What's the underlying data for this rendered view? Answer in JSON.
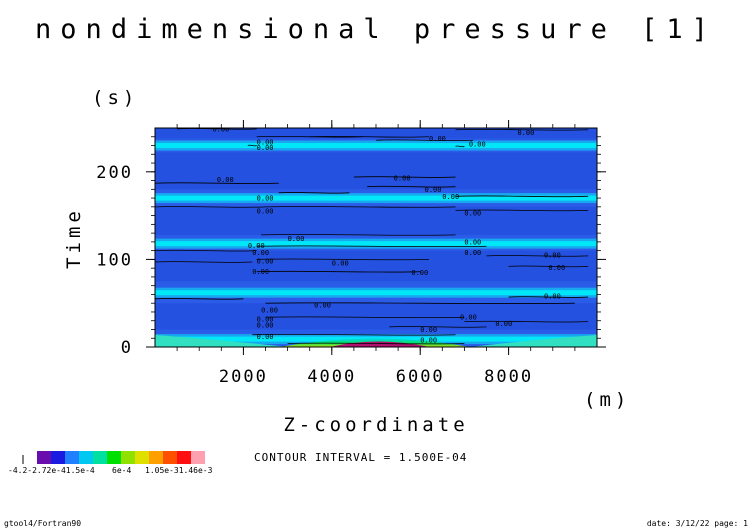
{
  "chart_data": {
    "type": "heatmap",
    "title": "nondimensional pressure [1]",
    "xlabel": "Z-coordinate",
    "ylabel": "Time",
    "x_unit": "(m)",
    "y_unit": "(s)",
    "xlim": [
      0,
      10000
    ],
    "ylim": [
      0,
      250
    ],
    "x_ticks": [
      "2000",
      "4000",
      "6000",
      "8000"
    ],
    "y_ticks": [
      "0",
      "100",
      "200"
    ],
    "x_tick_values": [
      2000,
      4000,
      6000,
      8000
    ],
    "y_tick_values": [
      0,
      100,
      200
    ],
    "contour_interval_text": "CONTOUR INTERVAL = 1.500E-04",
    "colorbar_labels": [
      "-4.2-2.72e-41.5e-4",
      "6e-4",
      "1.05e-31.46e-3"
    ],
    "colorbar_colors": [
      "#6a0dad",
      "#1a1ae0",
      "#2080ff",
      "#00c8f0",
      "#00e0a0",
      "#00e000",
      "#90e000",
      "#e0e000",
      "#ffa000",
      "#ff5000",
      "#ff1010",
      "#ffa0b0"
    ],
    "contour_label": "0.00",
    "bright_band_times": [
      9,
      62,
      118,
      170,
      230
    ],
    "bright_band_color": "#00e8f8",
    "background_color": "#2a5ce8",
    "contours": [
      {
        "z0": 500,
        "z1": 2300,
        "t": 249
      },
      {
        "z0": 2300,
        "z1": 4700,
        "t": 240
      },
      {
        "z0": 3500,
        "z1": 6200,
        "t": 240
      },
      {
        "z0": 5000,
        "z1": 7200,
        "t": 236
      },
      {
        "z0": 6800,
        "z1": 9800,
        "t": 248
      },
      {
        "z0": 2100,
        "z1": 2300,
        "t": 230
      },
      {
        "z0": 6800,
        "z1": 7000,
        "t": 229
      },
      {
        "z0": 0,
        "z1": 2800,
        "t": 187
      },
      {
        "z0": 2800,
        "z1": 4400,
        "t": 176
      },
      {
        "z0": 4500,
        "z1": 6800,
        "t": 194
      },
      {
        "z0": 4800,
        "z1": 6800,
        "t": 183
      },
      {
        "z0": 6800,
        "z1": 9800,
        "t": 172
      },
      {
        "z0": 0,
        "z1": 2500,
        "t": 160
      },
      {
        "z0": 2500,
        "z1": 6800,
        "t": 160
      },
      {
        "z0": 6800,
        "z1": 9800,
        "t": 156
      },
      {
        "z0": 2400,
        "z1": 6800,
        "t": 128
      },
      {
        "z0": 2300,
        "z1": 7500,
        "t": 115
      },
      {
        "z0": 2300,
        "z1": 6200,
        "t": 100
      },
      {
        "z0": 7500,
        "z1": 9800,
        "t": 104
      },
      {
        "z0": 0,
        "z1": 2300,
        "t": 110
      },
      {
        "z0": 2300,
        "z1": 6000,
        "t": 86
      },
      {
        "z0": 8000,
        "z1": 9800,
        "t": 92
      },
      {
        "z0": 0,
        "z1": 2200,
        "t": 97
      },
      {
        "z0": 0,
        "z1": 2000,
        "t": 55
      },
      {
        "z0": 2500,
        "z1": 9500,
        "t": 50
      },
      {
        "z0": 8000,
        "z1": 9800,
        "t": 57
      },
      {
        "z0": 2500,
        "z1": 7000,
        "t": 34
      },
      {
        "z0": 5300,
        "z1": 7500,
        "t": 23
      },
      {
        "z0": 7000,
        "z1": 9800,
        "t": 29
      },
      {
        "z0": 2200,
        "z1": 6800,
        "t": 14
      },
      {
        "z0": 3000,
        "z1": 7000,
        "t": 4
      }
    ],
    "contour_label_positions": [
      {
        "z": 1300,
        "t": 249
      },
      {
        "z": 2300,
        "t": 234
      },
      {
        "z": 2300,
        "t": 228
      },
      {
        "z": 6200,
        "t": 238
      },
      {
        "z": 7100,
        "t": 232
      },
      {
        "z": 8200,
        "t": 245
      },
      {
        "z": 1400,
        "t": 191
      },
      {
        "z": 5400,
        "t": 193
      },
      {
        "z": 6100,
        "t": 180
      },
      {
        "z": 2300,
        "t": 170
      },
      {
        "z": 6500,
        "t": 172
      },
      {
        "z": 2300,
        "t": 155
      },
      {
        "z": 7000,
        "t": 153
      },
      {
        "z": 3000,
        "t": 124
      },
      {
        "z": 7000,
        "t": 120
      },
      {
        "z": 2100,
        "t": 116
      },
      {
        "z": 2200,
        "t": 108
      },
      {
        "z": 7000,
        "t": 108
      },
      {
        "z": 8800,
        "t": 105
      },
      {
        "z": 2300,
        "t": 98
      },
      {
        "z": 4000,
        "t": 96
      },
      {
        "z": 8900,
        "t": 91
      },
      {
        "z": 2200,
        "t": 86
      },
      {
        "z": 5800,
        "t": 85
      },
      {
        "z": 8800,
        "t": 58
      },
      {
        "z": 3600,
        "t": 48
      },
      {
        "z": 2400,
        "t": 42
      },
      {
        "z": 6900,
        "t": 34
      },
      {
        "z": 2300,
        "t": 32
      },
      {
        "z": 7700,
        "t": 27
      },
      {
        "z": 2300,
        "t": 25
      },
      {
        "z": 6000,
        "t": 20
      },
      {
        "z": 6000,
        "t": 8
      },
      {
        "z": 2300,
        "t": 12
      }
    ]
  },
  "footer": {
    "left": "gtool4/Fortran90",
    "right": "date: 3/12/22 page: 1"
  }
}
